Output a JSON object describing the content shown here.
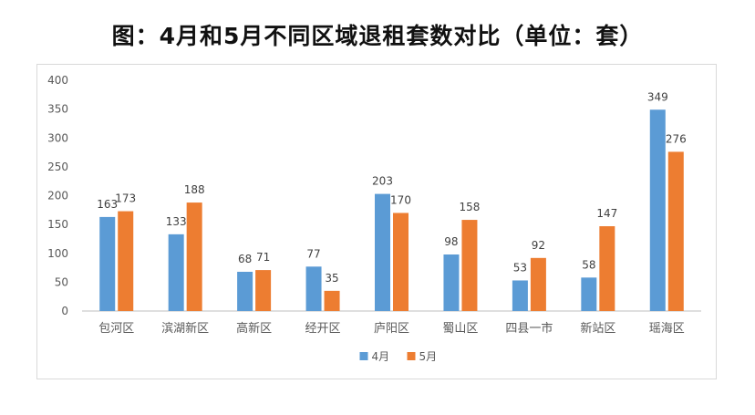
{
  "title": "图：4月和5月不同区域退租套数对比（单位：套）",
  "chart_data": {
    "type": "bar",
    "title": "图：4月和5月不同区域退租套数对比（单位：套）",
    "categories": [
      "包河区",
      "滨湖新区",
      "高新区",
      "经开区",
      "庐阳区",
      "蜀山区",
      "四县一市",
      "新站区",
      "瑶海区"
    ],
    "series": [
      {
        "name": "4月",
        "color": "#5b9bd5",
        "values": [
          163,
          133,
          68,
          77,
          203,
          98,
          53,
          58,
          349
        ]
      },
      {
        "name": "5月",
        "color": "#ed7d31",
        "values": [
          173,
          188,
          71,
          35,
          170,
          158,
          92,
          147,
          276
        ]
      }
    ],
    "ylim": [
      0,
      400
    ],
    "yticks": [
      0,
      50,
      100,
      150,
      200,
      250,
      300,
      350,
      400
    ],
    "grid": false,
    "legend_position": "bottom",
    "data_labels": true
  }
}
